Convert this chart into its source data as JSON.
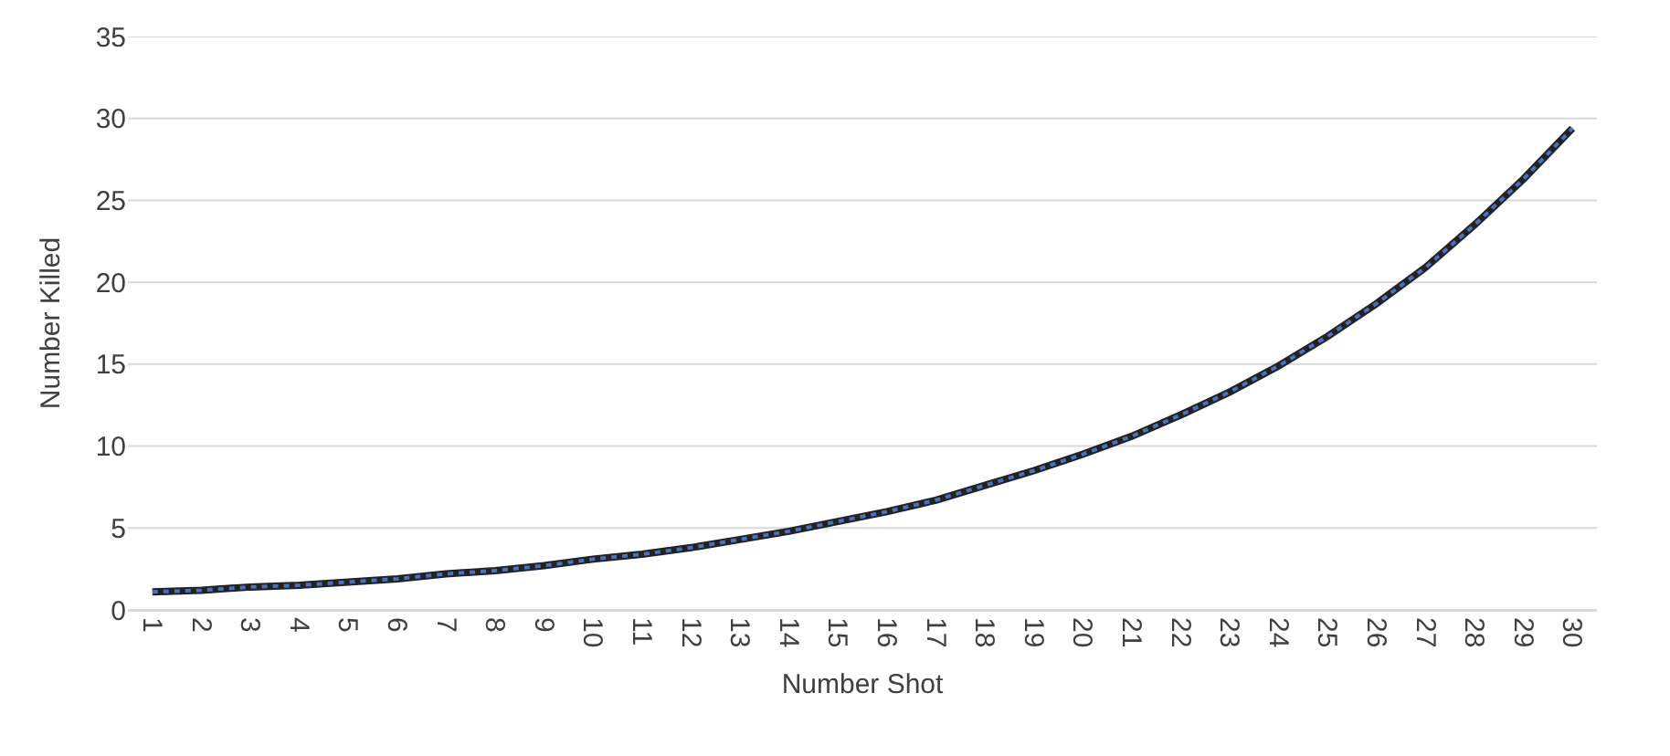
{
  "chart_data": {
    "type": "line",
    "xlabel": "Number Shot",
    "ylabel": "Number Killed",
    "categories": [
      "1",
      "2",
      "3",
      "4",
      "5",
      "6",
      "7",
      "8",
      "9",
      "10",
      "11",
      "12",
      "13",
      "14",
      "15",
      "16",
      "17",
      "18",
      "19",
      "20",
      "21",
      "22",
      "23",
      "24",
      "25",
      "26",
      "27",
      "28",
      "29",
      "30"
    ],
    "series": [
      {
        "color": "#222222",
        "line_style": "solid",
        "values": [
          1.1,
          1.2,
          1.4,
          1.5,
          1.7,
          1.9,
          2.2,
          2.4,
          2.7,
          3.1,
          3.4,
          3.8,
          4.3,
          4.8,
          5.4,
          6.0,
          6.7,
          7.6,
          8.5,
          9.5,
          10.6,
          11.9,
          13.3,
          14.9,
          16.7,
          18.7,
          20.9,
          23.5,
          26.3,
          29.4
        ]
      },
      {
        "color": "#4472c4",
        "line_style": "dotted",
        "values": [
          1.1,
          1.2,
          1.4,
          1.5,
          1.7,
          1.9,
          2.2,
          2.4,
          2.7,
          3.1,
          3.4,
          3.8,
          4.3,
          4.8,
          5.4,
          6.0,
          6.7,
          7.6,
          8.5,
          9.5,
          10.6,
          11.9,
          13.3,
          14.9,
          16.7,
          18.7,
          20.9,
          23.5,
          26.3,
          29.4
        ]
      }
    ],
    "ylim": [
      0,
      35
    ],
    "yticks": [
      0,
      5,
      10,
      15,
      20,
      25,
      30,
      35
    ],
    "grid": "y",
    "marker": "none"
  }
}
